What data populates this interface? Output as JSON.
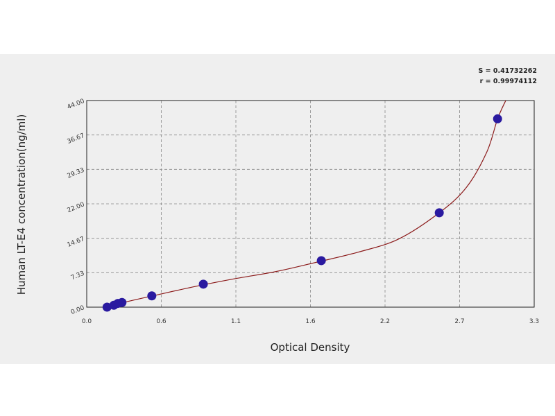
{
  "chart_data": {
    "type": "scatter",
    "xlabel": "Optical Density",
    "ylabel": "Human  LT-E4 concentration(ng/ml)",
    "xlim": [
      0.0,
      3.3
    ],
    "ylim": [
      0.0,
      44.0
    ],
    "x_ticks": [
      "0.0",
      "0.6",
      "1.1",
      "1.6",
      "2.2",
      "2.7",
      "3.3"
    ],
    "y_ticks": [
      "0.00",
      "7.33",
      "14.67",
      "22.00",
      "29.33",
      "36.67",
      "44.00"
    ],
    "grid": true,
    "stats": [
      "S = 0.41732262",
      "r = 0.99974112"
    ],
    "colors": {
      "points": "#2a1aa0",
      "curve": "#8b1a1a",
      "panel": "#efefef",
      "grid": "#888888"
    },
    "points": [
      {
        "x": 0.15,
        "y": 0.0
      },
      {
        "x": 0.2,
        "y": 0.4
      },
      {
        "x": 0.23,
        "y": 0.8
      },
      {
        "x": 0.26,
        "y": 1.0
      },
      {
        "x": 0.48,
        "y": 2.4
      },
      {
        "x": 0.86,
        "y": 4.9
      },
      {
        "x": 1.73,
        "y": 9.9
      },
      {
        "x": 2.6,
        "y": 20.1
      },
      {
        "x": 3.03,
        "y": 40.1
      }
    ],
    "curve": [
      {
        "x": 0.12,
        "y": 0.0
      },
      {
        "x": 0.3,
        "y": 1.2
      },
      {
        "x": 0.5,
        "y": 2.5
      },
      {
        "x": 0.8,
        "y": 4.4
      },
      {
        "x": 1.1,
        "y": 6.1
      },
      {
        "x": 1.4,
        "y": 7.6
      },
      {
        "x": 1.7,
        "y": 9.6
      },
      {
        "x": 2.0,
        "y": 11.7
      },
      {
        "x": 2.3,
        "y": 14.5
      },
      {
        "x": 2.6,
        "y": 20.1
      },
      {
        "x": 2.8,
        "y": 25.5
      },
      {
        "x": 2.95,
        "y": 33.0
      },
      {
        "x": 3.03,
        "y": 40.1
      },
      {
        "x": 3.09,
        "y": 44.0
      }
    ]
  }
}
